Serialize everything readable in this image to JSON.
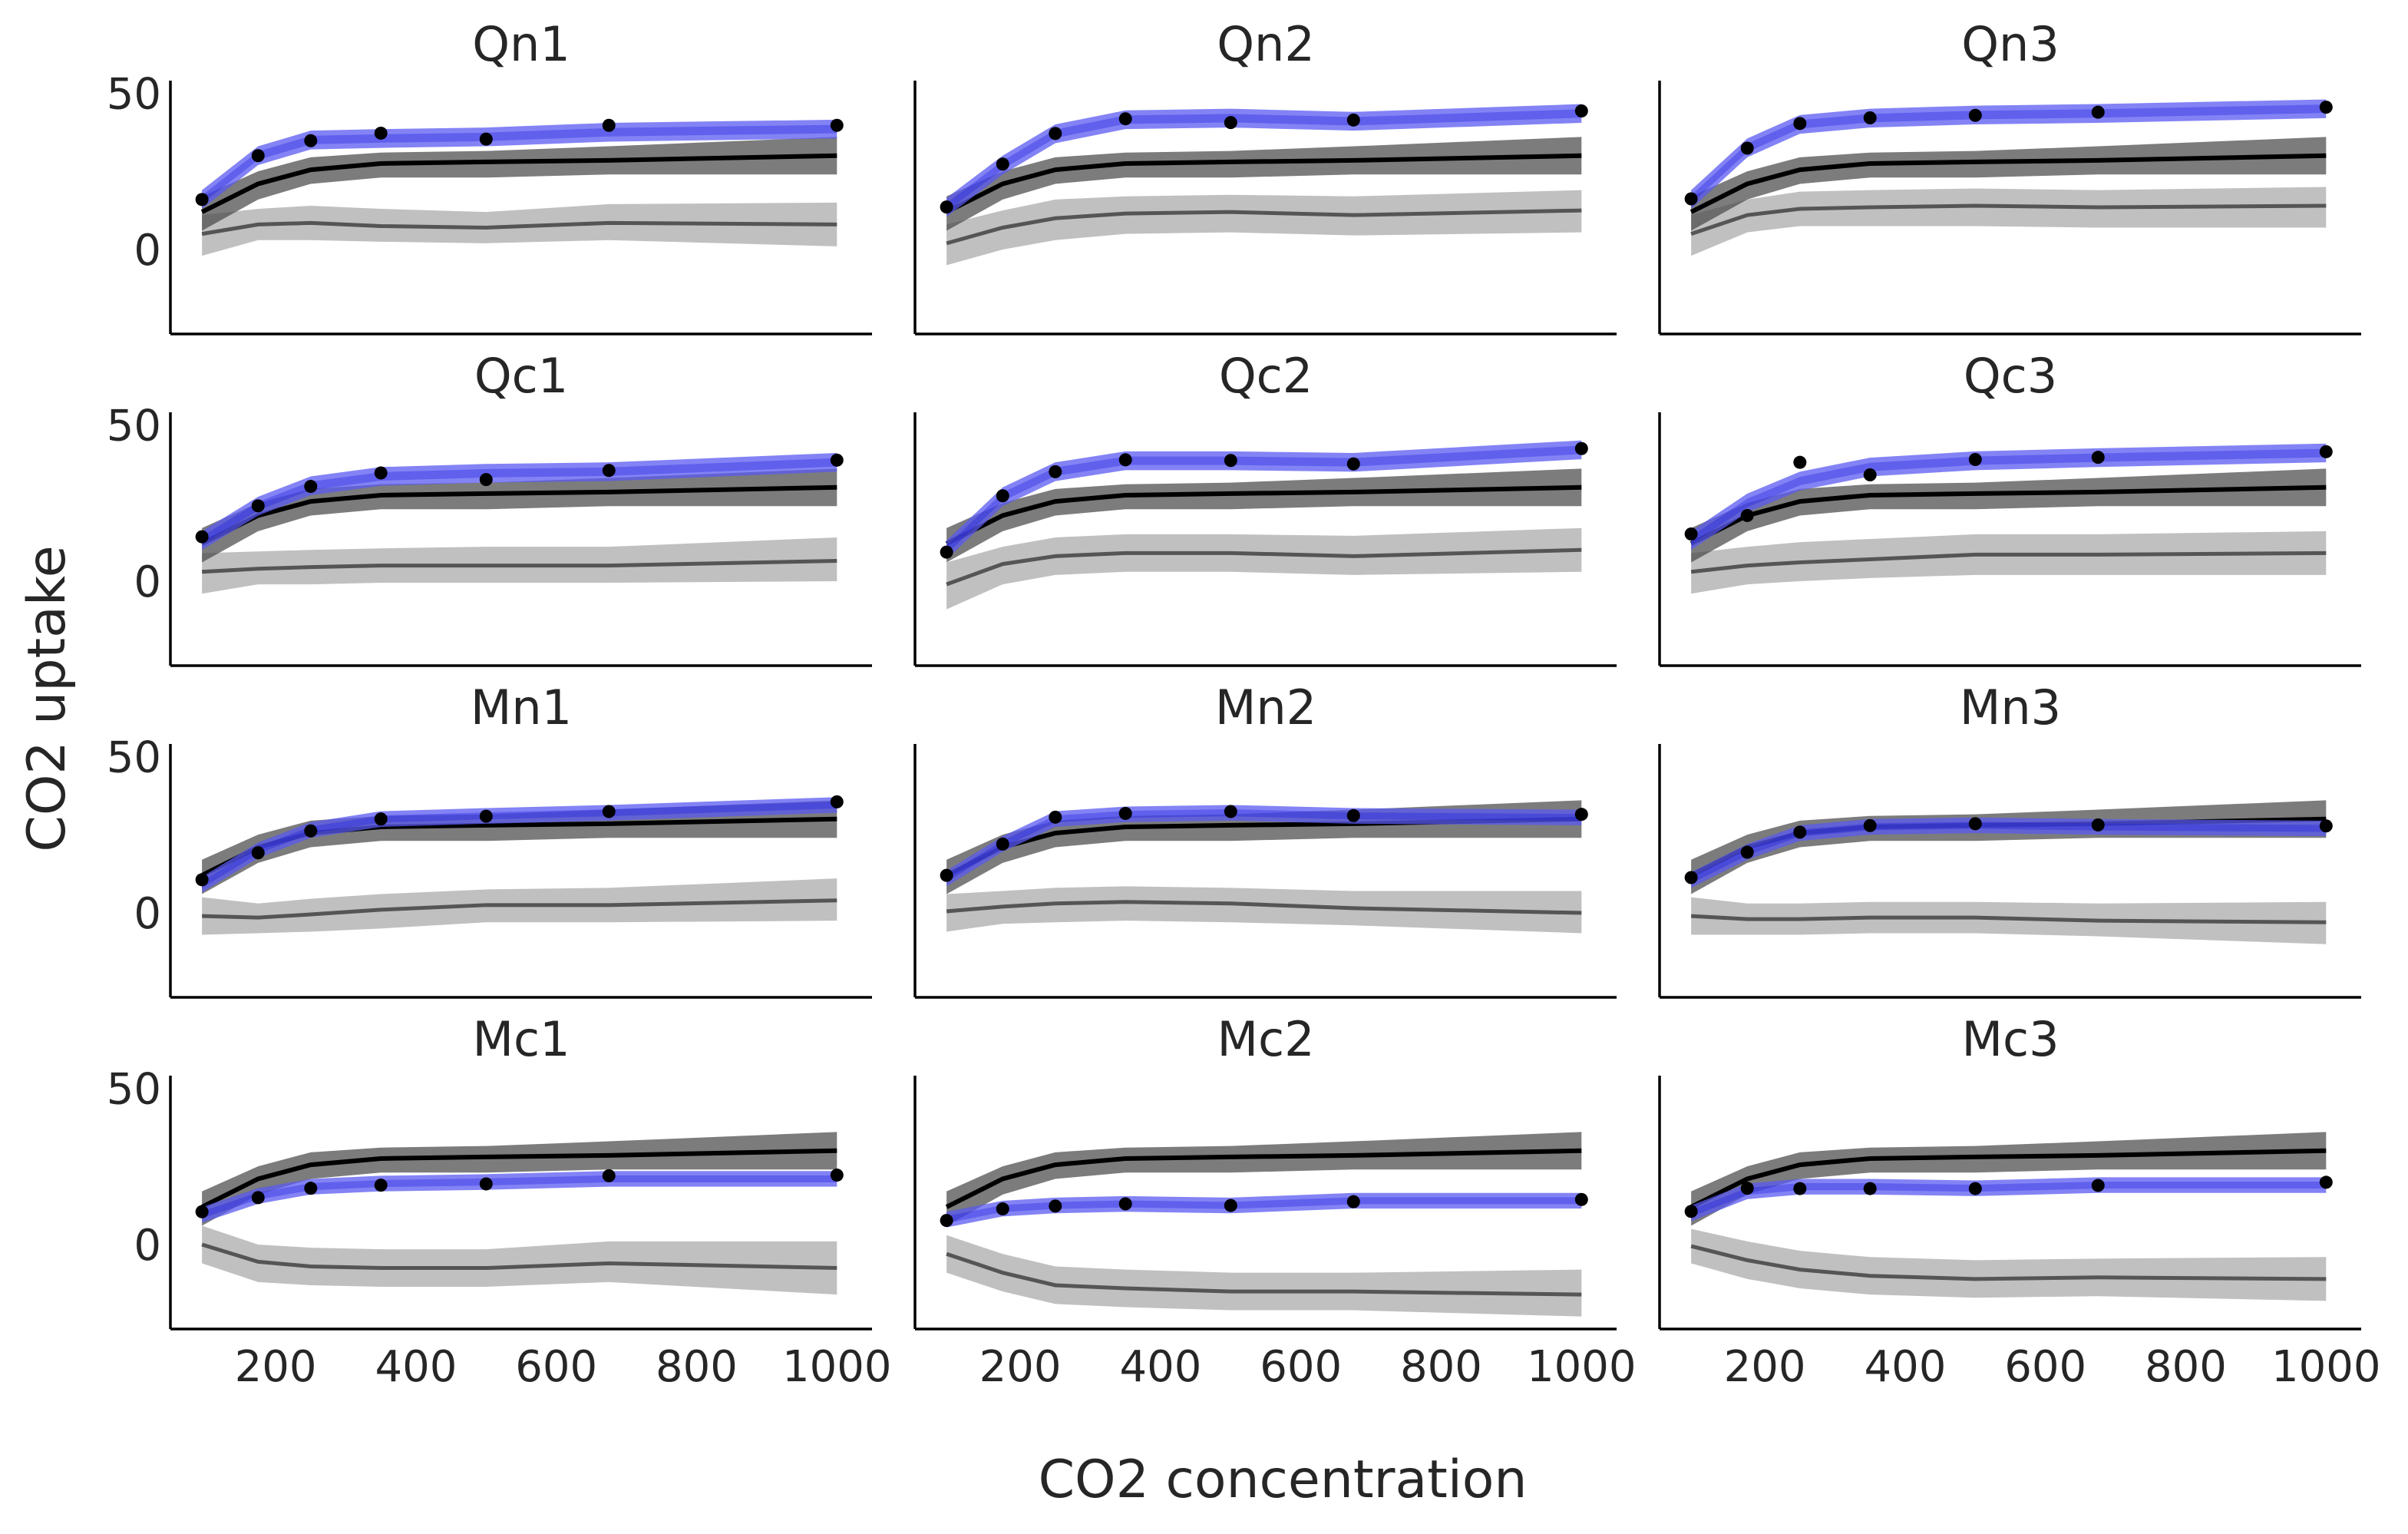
{
  "figure": {
    "xlabel": "CO2 concentration",
    "ylabel": "CO2 uptake"
  },
  "colors": {
    "blue_band": "#5a5af2",
    "blue_inner": "#2020e0",
    "dark_band": "#4a4a4a",
    "light_band": "#b5b5b5",
    "points": "#000000",
    "axis": "#000000"
  },
  "chart_data": [
    {
      "type": "line",
      "title": "Qn1",
      "xlim": [
        50,
        1050
      ],
      "ylim": [
        -27,
        54
      ],
      "xticks": [
        200,
        400,
        600,
        800,
        1000
      ],
      "yticks": [
        0,
        50
      ],
      "show_xticks": false,
      "show_yticks": true,
      "x": [
        95,
        175,
        250,
        350,
        500,
        675,
        1000
      ],
      "observed": [
        16,
        30,
        34.8,
        37.2,
        35.3,
        39.7,
        39.7
      ],
      "fit": {
        "mean": [
          16,
          30,
          35,
          35.5,
          36,
          37.5,
          38.5
        ],
        "half_width": 3
      },
      "trend": {
        "mean": [
          12,
          21,
          25.5,
          27.5,
          28,
          28.5,
          30
        ],
        "lower": [
          6,
          16,
          21,
          23,
          23,
          24,
          24
        ],
        "upper": [
          17,
          25,
          29.5,
          31,
          31.5,
          33,
          36
        ]
      },
      "offset": {
        "mean": [
          5,
          8,
          8.5,
          7.5,
          7,
          8.5,
          8
        ],
        "lower": [
          -2,
          3,
          3,
          2.5,
          2,
          3,
          1
        ],
        "upper": [
          11,
          13,
          14,
          13,
          12,
          14.5,
          15
        ]
      }
    },
    {
      "type": "line",
      "title": "Qn2",
      "xlim": [
        50,
        1050
      ],
      "ylim": [
        -27,
        54
      ],
      "xticks": [
        200,
        400,
        600,
        800,
        1000
      ],
      "yticks": [
        0,
        50
      ],
      "show_xticks": false,
      "show_yticks": false,
      "x": [
        95,
        175,
        250,
        350,
        500,
        675,
        1000
      ],
      "observed": [
        13.6,
        27.3,
        37.1,
        41.8,
        40.6,
        41.4,
        44.3
      ],
      "fit": {
        "mean": [
          13.5,
          27,
          37,
          41.5,
          42,
          41,
          43.5
        ],
        "half_width": 3
      },
      "trend": {
        "mean": [
          12,
          21,
          25.5,
          27.5,
          28,
          28.5,
          30
        ],
        "lower": [
          6,
          16,
          21,
          23,
          23,
          24,
          24
        ],
        "upper": [
          17,
          25,
          29.5,
          31,
          31.5,
          33,
          36
        ]
      },
      "offset": {
        "mean": [
          2,
          7,
          10,
          11.5,
          12,
          11,
          12.5
        ],
        "lower": [
          -5,
          0,
          3,
          5,
          5.5,
          4.5,
          5.5
        ],
        "upper": [
          8,
          12.5,
          16,
          17,
          17.5,
          17,
          19
        ]
      }
    },
    {
      "type": "line",
      "title": "Qn3",
      "xlim": [
        50,
        1050
      ],
      "ylim": [
        -27,
        54
      ],
      "xticks": [
        200,
        400,
        600,
        800,
        1000
      ],
      "yticks": [
        0,
        50
      ],
      "show_xticks": false,
      "show_yticks": false,
      "x": [
        95,
        175,
        250,
        350,
        500,
        675,
        1000
      ],
      "observed": [
        16.2,
        32.4,
        40.3,
        42.1,
        42.9,
        43.9,
        45.5
      ],
      "fit": {
        "mean": [
          16,
          32.5,
          40,
          42,
          43,
          43.5,
          45
        ],
        "half_width": 3
      },
      "trend": {
        "mean": [
          12,
          21,
          25.5,
          27.5,
          28,
          28.5,
          30
        ],
        "lower": [
          6,
          16,
          21,
          23,
          23,
          24,
          24
        ],
        "upper": [
          17,
          25,
          29.5,
          31,
          31.5,
          33,
          36
        ]
      },
      "offset": {
        "mean": [
          5,
          11,
          13,
          13.5,
          14,
          13.5,
          14
        ],
        "lower": [
          -2,
          5.5,
          7.5,
          7.5,
          7.5,
          7,
          7
        ],
        "upper": [
          11,
          16,
          18.5,
          19,
          19.5,
          19,
          20
        ]
      }
    },
    {
      "type": "line",
      "title": "Qc1",
      "xlim": [
        50,
        1050
      ],
      "ylim": [
        -27,
        54
      ],
      "xticks": [
        200,
        400,
        600,
        800,
        1000
      ],
      "yticks": [
        0,
        50
      ],
      "show_xticks": false,
      "show_yticks": true,
      "x": [
        95,
        175,
        250,
        350,
        500,
        675,
        1000
      ],
      "observed": [
        14.2,
        24.1,
        30.3,
        34.6,
        32.5,
        35.4,
        38.7
      ],
      "fit": {
        "mean": [
          13,
          24,
          30.5,
          33.5,
          34.5,
          35,
          38
        ],
        "half_width": 3
      },
      "trend": {
        "mean": [
          12,
          21,
          25.5,
          27.5,
          28,
          28.5,
          30
        ],
        "lower": [
          6,
          16,
          21,
          23,
          23,
          24,
          24
        ],
        "upper": [
          17,
          25,
          29.5,
          31,
          31.5,
          33,
          36
        ]
      },
      "offset": {
        "mean": [
          3,
          4,
          4.5,
          5,
          5,
          5,
          6.5
        ],
        "lower": [
          -4,
          -1,
          -1,
          -0.5,
          -0.5,
          -0.5,
          0
        ],
        "upper": [
          9,
          9.5,
          10,
          10.5,
          11,
          11,
          14
        ]
      }
    },
    {
      "type": "line",
      "title": "Qc2",
      "xlim": [
        50,
        1050
      ],
      "ylim": [
        -27,
        54
      ],
      "xticks": [
        200,
        400,
        600,
        800,
        1000
      ],
      "yticks": [
        0,
        50
      ],
      "show_xticks": false,
      "show_yticks": false,
      "x": [
        95,
        175,
        250,
        350,
        500,
        675,
        1000
      ],
      "observed": [
        9.3,
        27.3,
        35,
        38.8,
        38.6,
        37.5,
        42.4
      ],
      "fit": {
        "mean": [
          10,
          27,
          35,
          38.5,
          38.5,
          38,
          42
        ],
        "half_width": 3
      },
      "trend": {
        "mean": [
          12,
          21,
          25.5,
          27.5,
          28,
          28.5,
          30
        ],
        "lower": [
          6,
          16,
          21,
          23,
          23,
          24,
          24
        ],
        "upper": [
          17,
          25,
          29.5,
          31,
          31.5,
          33,
          36
        ]
      },
      "offset": {
        "mean": [
          -1,
          5.5,
          8,
          9,
          9,
          8,
          10
        ],
        "lower": [
          -9,
          -1,
          2,
          3,
          3,
          2,
          3
        ],
        "upper": [
          6,
          11,
          14,
          15,
          15,
          14.5,
          17
        ]
      }
    },
    {
      "type": "line",
      "title": "Qc3",
      "xlim": [
        50,
        1050
      ],
      "ylim": [
        -27,
        54
      ],
      "xticks": [
        200,
        400,
        600,
        800,
        1000
      ],
      "yticks": [
        0,
        50
      ],
      "show_xticks": false,
      "show_yticks": false,
      "x": [
        95,
        175,
        250,
        350,
        500,
        675,
        1000
      ],
      "observed": [
        15.1,
        21,
        38,
        34,
        38.9,
        39.6,
        41.4
      ],
      "fit": {
        "mean": [
          13,
          25,
          32,
          36.5,
          38.5,
          39.5,
          41
        ],
        "half_width": 3
      },
      "trend": {
        "mean": [
          12,
          21,
          25.5,
          27.5,
          28,
          28.5,
          30
        ],
        "lower": [
          6,
          16,
          21,
          23,
          23,
          24,
          24
        ],
        "upper": [
          17,
          25,
          29.5,
          31,
          31.5,
          33,
          36
        ]
      },
      "offset": {
        "mean": [
          3,
          5,
          6,
          7,
          8.5,
          8.5,
          9
        ],
        "lower": [
          -4,
          -1,
          0,
          1,
          2,
          2,
          2
        ],
        "upper": [
          9,
          11,
          12.5,
          13.5,
          15,
          15,
          16
        ]
      }
    },
    {
      "type": "line",
      "title": "Mn1",
      "xlim": [
        50,
        1050
      ],
      "ylim": [
        -27,
        54
      ],
      "xticks": [
        200,
        400,
        600,
        800,
        1000
      ],
      "yticks": [
        0,
        50
      ],
      "show_xticks": false,
      "show_yticks": true,
      "x": [
        95,
        175,
        250,
        350,
        500,
        675,
        1000
      ],
      "observed": [
        10.6,
        19.2,
        26.2,
        30,
        30.9,
        32.4,
        35.5
      ],
      "fit": {
        "mean": [
          9,
          20,
          26.5,
          30,
          31,
          32,
          34.5
        ],
        "half_width": 2.5
      },
      "trend": {
        "mean": [
          12,
          21,
          25.5,
          27.5,
          28,
          28.5,
          30
        ],
        "lower": [
          6,
          16,
          21,
          23,
          23,
          24,
          24
        ],
        "upper": [
          17,
          25,
          29.5,
          31,
          31.5,
          33,
          36
        ]
      },
      "offset": {
        "mean": [
          -1,
          -1.5,
          -0.5,
          1,
          2.5,
          2.5,
          4
        ],
        "lower": [
          -7,
          -6.5,
          -6,
          -5,
          -3,
          -3,
          -2.5
        ],
        "upper": [
          5,
          3,
          4.5,
          6,
          7.5,
          8,
          11
        ]
      }
    },
    {
      "type": "line",
      "title": "Mn2",
      "xlim": [
        50,
        1050
      ],
      "ylim": [
        -27,
        54
      ],
      "xticks": [
        200,
        400,
        600,
        800,
        1000
      ],
      "yticks": [
        0,
        50
      ],
      "show_xticks": false,
      "show_yticks": false,
      "x": [
        95,
        175,
        250,
        350,
        500,
        675,
        1000
      ],
      "observed": [
        12,
        22,
        30.6,
        31.8,
        32.4,
        31.1,
        31.5
      ],
      "fit": {
        "mean": [
          11,
          22,
          30,
          31.5,
          32,
          31,
          30.5
        ],
        "half_width": 2.5
      },
      "trend": {
        "mean": [
          12,
          21,
          25.5,
          27.5,
          28,
          28.5,
          30
        ],
        "lower": [
          6,
          16,
          21,
          23,
          23,
          24,
          24
        ],
        "upper": [
          17,
          25,
          29.5,
          31,
          31.5,
          33,
          36
        ]
      },
      "offset": {
        "mean": [
          0.5,
          2,
          3,
          3.5,
          3,
          1.5,
          0
        ],
        "lower": [
          -6,
          -3.5,
          -3,
          -2.5,
          -3,
          -4,
          -6.5
        ],
        "upper": [
          6,
          7,
          8,
          8.5,
          8,
          7,
          7
        ]
      }
    },
    {
      "type": "line",
      "title": "Mn3",
      "xlim": [
        50,
        1050
      ],
      "ylim": [
        -27,
        54
      ],
      "xticks": [
        200,
        400,
        600,
        800,
        1000
      ],
      "yticks": [
        0,
        50
      ],
      "show_xticks": false,
      "show_yticks": false,
      "x": [
        95,
        175,
        250,
        350,
        500,
        675,
        1000
      ],
      "observed": [
        11.3,
        19.4,
        25.8,
        27.9,
        28.5,
        28.1,
        27.8
      ],
      "fit": {
        "mean": [
          10.5,
          19.5,
          25.5,
          27.5,
          28,
          27.5,
          27
        ],
        "half_width": 2.5
      },
      "trend": {
        "mean": [
          12,
          21,
          25.5,
          27.5,
          28,
          28.5,
          30
        ],
        "lower": [
          6,
          16,
          21,
          23,
          23,
          24,
          24
        ],
        "upper": [
          17,
          25,
          29.5,
          31,
          31.5,
          33,
          36
        ]
      },
      "offset": {
        "mean": [
          -1,
          -2,
          -2,
          -1.5,
          -1.5,
          -2.5,
          -3
        ],
        "lower": [
          -7,
          -7,
          -7,
          -6.5,
          -6.5,
          -7.5,
          -10
        ],
        "upper": [
          5,
          3,
          3,
          3.5,
          3.5,
          3,
          3.5
        ]
      }
    },
    {
      "type": "line",
      "title": "Mc1",
      "xlim": [
        50,
        1050
      ],
      "ylim": [
        -27,
        54
      ],
      "xticks": [
        200,
        400,
        600,
        800,
        1000
      ],
      "yticks": [
        0,
        50
      ],
      "show_xticks": true,
      "show_yticks": true,
      "x": [
        95,
        175,
        250,
        350,
        500,
        675,
        1000
      ],
      "observed": [
        10.5,
        15,
        18,
        19,
        19.4,
        22,
        22.2
      ],
      "fit": {
        "mean": [
          9.5,
          15.5,
          18.5,
          19.5,
          20,
          21,
          21
        ],
        "half_width": 2.5
      },
      "trend": {
        "mean": [
          12,
          21,
          25.5,
          27.5,
          28,
          28.5,
          30
        ],
        "lower": [
          6,
          16,
          21,
          23,
          23,
          24,
          24
        ],
        "upper": [
          17,
          25,
          29.5,
          31,
          31.5,
          33,
          36
        ]
      },
      "offset": {
        "mean": [
          0,
          -5.5,
          -7,
          -7.5,
          -7.5,
          -6,
          -7.5
        ],
        "lower": [
          -6,
          -12,
          -13,
          -13.5,
          -13.5,
          -12,
          -16
        ],
        "upper": [
          6,
          0,
          -1,
          -1.5,
          -1.5,
          1,
          1
        ]
      }
    },
    {
      "type": "line",
      "title": "Mc2",
      "xlim": [
        50,
        1050
      ],
      "ylim": [
        -27,
        54
      ],
      "xticks": [
        200,
        400,
        600,
        800,
        1000
      ],
      "yticks": [
        0,
        50
      ],
      "show_xticks": true,
      "show_yticks": false,
      "x": [
        95,
        175,
        250,
        350,
        500,
        675,
        1000
      ],
      "observed": [
        7.7,
        11.4,
        12.3,
        13,
        12.5,
        13.7,
        14.4
      ],
      "fit": {
        "mean": [
          8,
          11.5,
          12.5,
          13,
          12.5,
          14,
          14
        ],
        "half_width": 2.5
      },
      "trend": {
        "mean": [
          12,
          21,
          25.5,
          27.5,
          28,
          28.5,
          30
        ],
        "lower": [
          6,
          16,
          21,
          23,
          23,
          24,
          24
        ],
        "upper": [
          17,
          25,
          29.5,
          31,
          31.5,
          33,
          36
        ]
      },
      "offset": {
        "mean": [
          -3,
          -9,
          -13,
          -14,
          -15,
          -15,
          -16
        ],
        "lower": [
          -9,
          -15,
          -19,
          -20,
          -21,
          -21,
          -23
        ],
        "upper": [
          3,
          -3,
          -7,
          -8,
          -9,
          -9,
          -8
        ]
      }
    },
    {
      "type": "line",
      "title": "Mc3",
      "xlim": [
        50,
        1050
      ],
      "ylim": [
        -27,
        54
      ],
      "xticks": [
        200,
        400,
        600,
        800,
        1000
      ],
      "yticks": [
        0,
        50
      ],
      "show_xticks": true,
      "show_yticks": false,
      "x": [
        95,
        175,
        250,
        350,
        500,
        675,
        1000
      ],
      "observed": [
        10.6,
        18,
        17.9,
        17.9,
        17.9,
        18.9,
        19.9
      ],
      "fit": {
        "mean": [
          10,
          17,
          18.5,
          18.5,
          18,
          19,
          19
        ],
        "half_width": 2.5
      },
      "trend": {
        "mean": [
          12,
          21,
          25.5,
          27.5,
          28,
          28.5,
          30
        ],
        "lower": [
          6,
          16,
          21,
          23,
          23,
          24,
          24
        ],
        "upper": [
          17,
          25,
          29.5,
          31,
          31.5,
          33,
          36
        ]
      },
      "offset": {
        "mean": [
          -0.5,
          -5,
          -8,
          -10,
          -11,
          -10.5,
          -11
        ],
        "lower": [
          -6,
          -11,
          -14,
          -16,
          -17,
          -16.5,
          -18
        ],
        "upper": [
          5,
          1,
          -2,
          -4,
          -5,
          -4.5,
          -4
        ]
      }
    }
  ]
}
